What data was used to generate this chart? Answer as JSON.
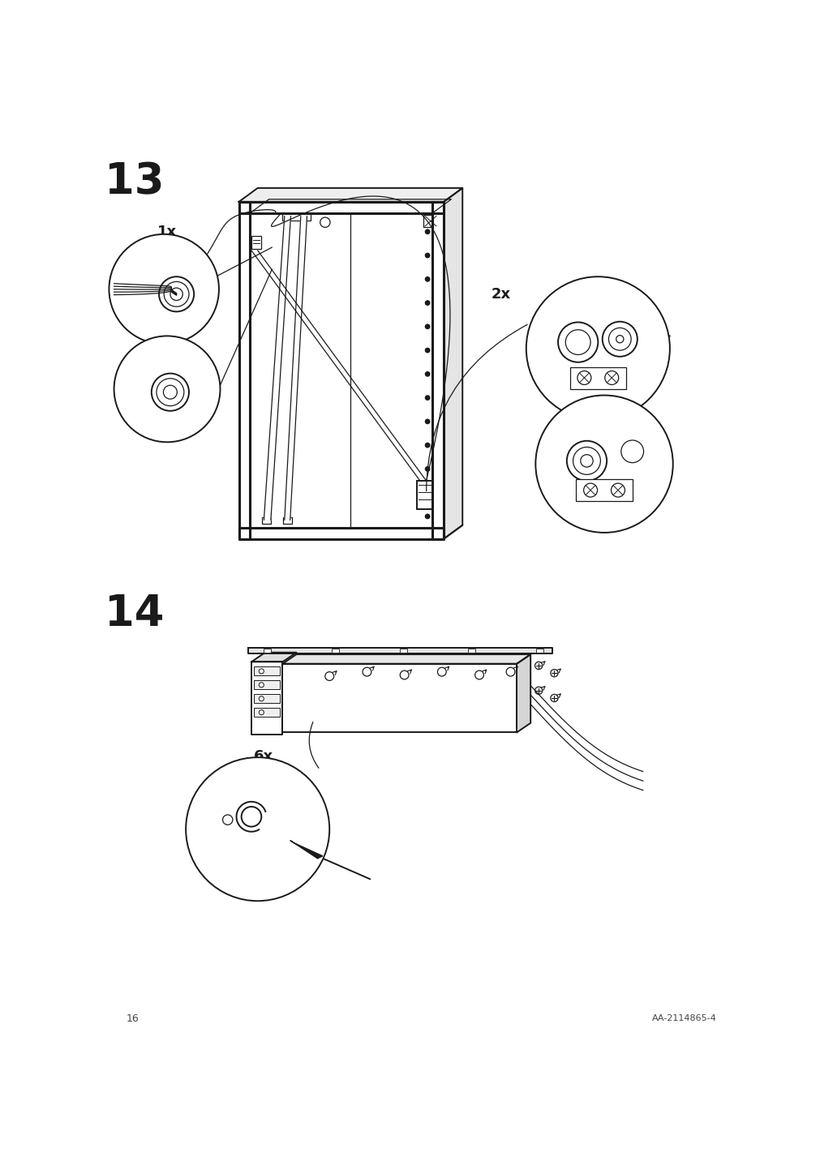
{
  "page_number": "16",
  "doc_id": "AA-2114865-4",
  "step13_label": "13",
  "step14_label": "14",
  "count_1x": "1x",
  "count_2x": "2x",
  "count_6x": "6x",
  "bg_color": "#ffffff",
  "line_color": "#1a1a1a",
  "step_fontsize": 38,
  "label_fontsize": 13,
  "footer_fontsize": 8,
  "page_num_fontsize": 9
}
